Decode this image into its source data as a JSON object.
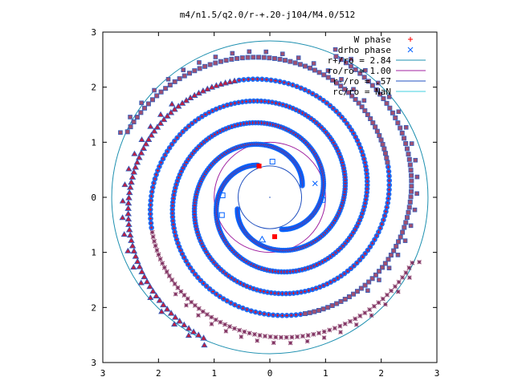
{
  "chart_data": {
    "type": "scatter",
    "title": "m4/n1.5/q2.0/r-+.20-j104/M4.0/512",
    "xlabel": "",
    "ylabel": "",
    "xlim": [
      -3,
      3
    ],
    "ylim": [
      -3,
      3
    ],
    "x_ticks": [
      "3",
      "2",
      "1",
      "0",
      "1",
      "2",
      "3"
    ],
    "y_ticks": [
      "3",
      "2",
      "1",
      "0",
      "1",
      "2",
      "3"
    ],
    "grid": false,
    "legend_position": "top-right",
    "series": [
      {
        "name": "W phase",
        "marker": "+",
        "color": "#ff0000"
      },
      {
        "name": "drho phase",
        "marker": "x",
        "color": "#0060ff"
      }
    ],
    "circles": [
      {
        "label": "r+/ro = 2.84",
        "radius": 2.84,
        "color": "#1e90b0"
      },
      {
        "label": "ro/ro = 1.00",
        "radius": 1.0,
        "color": "#a020a0"
      },
      {
        "label": "r-/ro = .57",
        "radius": 0.57,
        "color": "#2050c0"
      },
      {
        "label": "rc/ro = NaN",
        "radius": null,
        "color": "#40d0e0"
      }
    ],
    "spiral_arms": 4
  },
  "colors": {
    "w_phase": "#ff0000",
    "drho_phase": "#0060ff",
    "square_fill": "#a05070",
    "triangle_fill": "#c02040",
    "star_fill": "#803060"
  }
}
